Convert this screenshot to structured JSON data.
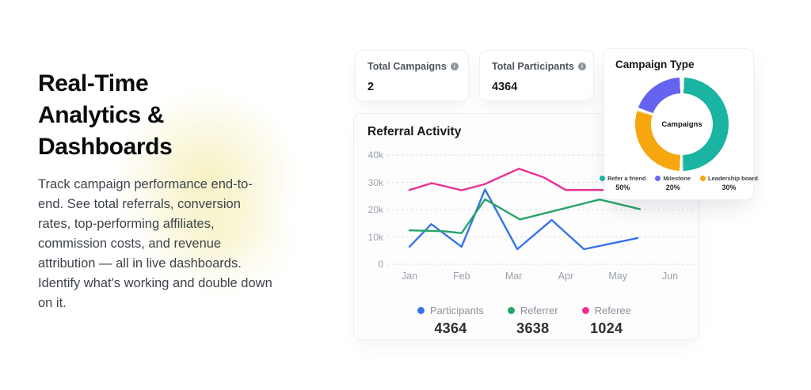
{
  "hero": {
    "title_lines": [
      "Real-Time",
      "Analytics &",
      "Dashboards"
    ],
    "description": "Track campaign performance end-to-end. See total referrals, conversion rates, top-performing affiliates, commission costs, and revenue attribution — all in live dashboards. Identify what's working and double down on it."
  },
  "stat_cards": [
    {
      "label": "Total Campaigns",
      "value": "2",
      "icon": "info-circle"
    },
    {
      "label": "Total Participants",
      "value": "4364",
      "icon": "info-circle"
    }
  ],
  "colors": {
    "legend_divider": "#8a8ef5",
    "grid": "#d8d9dc",
    "axis_label": "#9aa1a9",
    "glow": "#f2eba8"
  },
  "chart_data": [
    {
      "type": "line",
      "title": "Referral Activity",
      "x_tick_labels": [
        "Jan",
        "Feb",
        "Mar",
        "Apr",
        "May",
        "Jun"
      ],
      "x_ticks": [
        1,
        2,
        3,
        4,
        5,
        6
      ],
      "y_ticks": [
        40000,
        30000,
        20000,
        10000,
        0
      ],
      "y_tick_labels": [
        "40k",
        "30k",
        "20k",
        "10k",
        "0"
      ],
      "ylim": [
        0,
        40000
      ],
      "grid": "dashed-horizontal",
      "legend_position": "bottom",
      "series": [
        {
          "name": "Participants",
          "color": "#3574e8",
          "total": "4364",
          "points": [
            [
              1,
              6400
            ],
            [
              1.42,
              14700
            ],
            [
              2,
              6400
            ],
            [
              2.45,
              27400
            ],
            [
              3.07,
              5500
            ],
            [
              3.73,
              16200
            ],
            [
              4.35,
              5500
            ],
            [
              5.38,
              9600
            ]
          ]
        },
        {
          "name": "Referrer",
          "color": "#27a468",
          "total": "3638",
          "points": [
            [
              1,
              12400
            ],
            [
              1.67,
              12100
            ],
            [
              2,
              11400
            ],
            [
              2.45,
              23800
            ],
            [
              3.12,
              16400
            ],
            [
              4.65,
              23700
            ],
            [
              5.42,
              20200
            ]
          ]
        },
        {
          "name": "Referee",
          "color": "#ea3092",
          "total": "1024",
          "points": [
            [
              1,
              27200
            ],
            [
              1.43,
              29700
            ],
            [
              2,
              27100
            ],
            [
              2.44,
              29300
            ],
            [
              3.1,
              35000
            ],
            [
              3.58,
              31800
            ],
            [
              4,
              27200
            ],
            [
              5.9,
              27200
            ]
          ]
        }
      ]
    },
    {
      "type": "pie",
      "donut": true,
      "title": "Campaign Type",
      "center_label": "Campaigns",
      "legend_position": "bottom",
      "slices": [
        {
          "label": "Refer a friend",
          "percent": "50%",
          "value": 50,
          "color": "#19b4a2"
        },
        {
          "label": "Milestone",
          "percent": "20%",
          "value": 20,
          "color": "#6663f1"
        },
        {
          "label": "Leadership board",
          "percent": "30%",
          "value": 30,
          "color": "#f6a60f"
        }
      ],
      "draw_order": [
        0,
        2,
        1
      ]
    }
  ]
}
